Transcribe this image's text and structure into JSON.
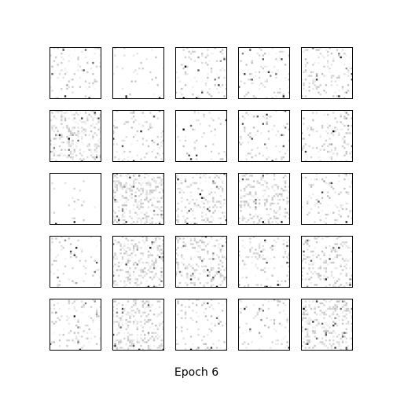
{
  "chart_data": {
    "type": "heatmap",
    "title": "Epoch 6",
    "grid": {
      "rows": 5,
      "cols": 5
    },
    "image_size": 28,
    "colormap": "gray_r",
    "value_range": [
      0,
      1
    ],
    "axes_visible": false,
    "seed": 6,
    "panel_density": [
      0.1,
      0.03,
      0.12,
      0.1,
      0.14,
      0.28,
      0.12,
      0.08,
      0.1,
      0.15,
      0.02,
      0.36,
      0.2,
      0.24,
      0.12,
      0.09,
      0.32,
      0.24,
      0.14,
      0.22,
      0.12,
      0.26,
      0.14,
      0.1,
      0.3
    ]
  },
  "colors": {
    "background": "#ffffff",
    "frame": "#000000",
    "pixel_dark": "#000000"
  }
}
